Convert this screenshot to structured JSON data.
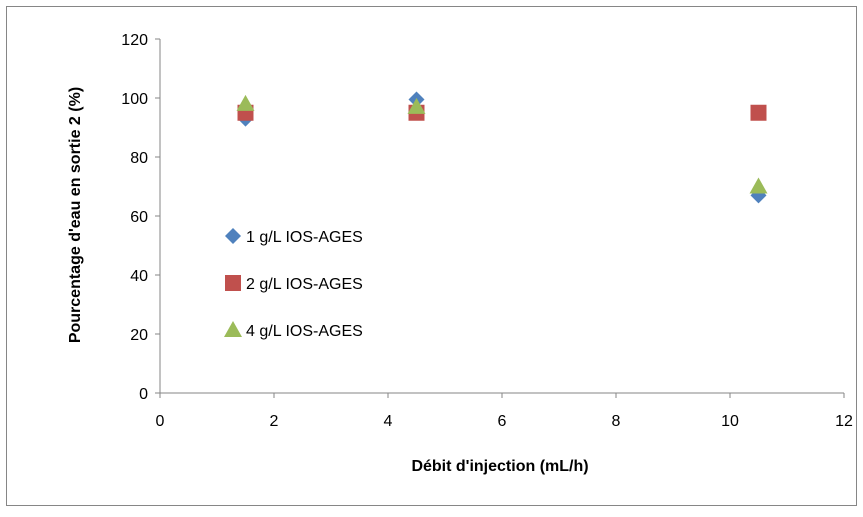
{
  "chart_data": {
    "type": "scatter",
    "title": "",
    "xlabel": "Débit d'injection (mL/h)",
    "ylabel": "Pourcentage d'eau en sortie 2 (%)",
    "xlim": [
      0,
      12
    ],
    "ylim": [
      0,
      120
    ],
    "xticks": [
      "0",
      "2",
      "4",
      "6",
      "8",
      "10",
      "12"
    ],
    "yticks": [
      "0",
      "20",
      "40",
      "60",
      "80",
      "100",
      "120"
    ],
    "grid": false,
    "legend_position": "left-middle inside plot",
    "series": [
      {
        "name": "1 g/L IOS-AGES",
        "marker": "diamond",
        "color": "#4f81bd",
        "points": [
          {
            "x": 1.5,
            "y": 93
          },
          {
            "x": 4.5,
            "y": 99.5
          },
          {
            "x": 10.5,
            "y": 67
          }
        ]
      },
      {
        "name": "2 g/L IOS-AGES",
        "marker": "square",
        "color": "#c0504d",
        "points": [
          {
            "x": 1.5,
            "y": 95
          },
          {
            "x": 4.5,
            "y": 95
          },
          {
            "x": 10.5,
            "y": 95
          }
        ]
      },
      {
        "name": "4 g/L IOS-AGES",
        "marker": "triangle",
        "color": "#9bbb59",
        "points": [
          {
            "x": 1.5,
            "y": 98
          },
          {
            "x": 4.5,
            "y": 97
          },
          {
            "x": 10.5,
            "y": 70
          }
        ]
      }
    ]
  }
}
